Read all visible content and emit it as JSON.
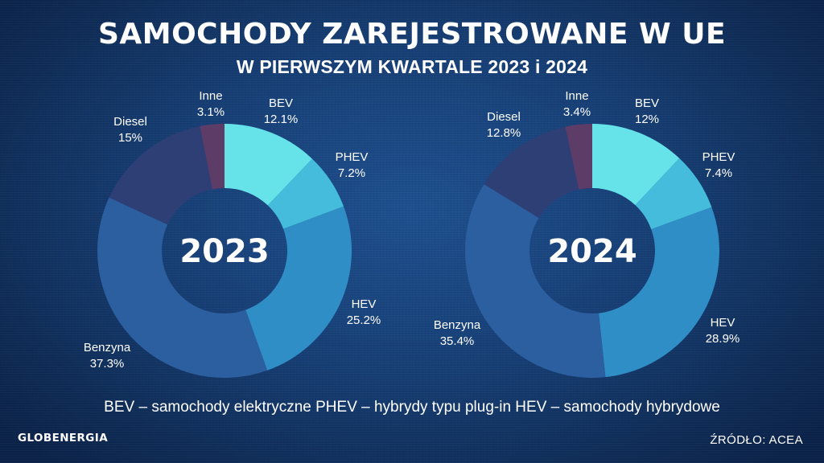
{
  "title": "SAMOCHODY ZAREJESTROWANE W UE",
  "subtitle": "W PIERWSZYM KWARTALE 2023 i 2024",
  "legend_note": "BEV – samochody elektryczne PHEV – hybrydy typu plug-in HEV – samochody hybrydowe",
  "brand": "GLOBENERGIA",
  "source": "ŹRÓDŁO: ACEA",
  "colors": {
    "BEV": "#66e3e8",
    "PHEV": "#45bcdc",
    "HEV": "#2f8ec6",
    "Benzyna": "#2c5f9f",
    "Diesel": "#2e3f75",
    "Inne": "#5e3c68"
  },
  "chart_data": [
    {
      "type": "pie",
      "center_label": "2023",
      "categories": [
        "BEV",
        "PHEV",
        "HEV",
        "Benzyna",
        "Diesel",
        "Inne"
      ],
      "value_labels": [
        "12.1%",
        "7.2%",
        "25.2%",
        "37.3%",
        "15%",
        "3.1%"
      ],
      "values": [
        12.1,
        7.2,
        25.2,
        37.3,
        15,
        3.1
      ]
    },
    {
      "type": "pie",
      "center_label": "2024",
      "categories": [
        "BEV",
        "PHEV",
        "HEV",
        "Benzyna",
        "Diesel",
        "Inne"
      ],
      "value_labels": [
        "12%",
        "7.4%",
        "28.9%",
        "35.4%",
        "12.8%",
        "3.4%"
      ],
      "values": [
        12,
        7.4,
        28.9,
        35.4,
        12.8,
        3.4
      ]
    }
  ]
}
